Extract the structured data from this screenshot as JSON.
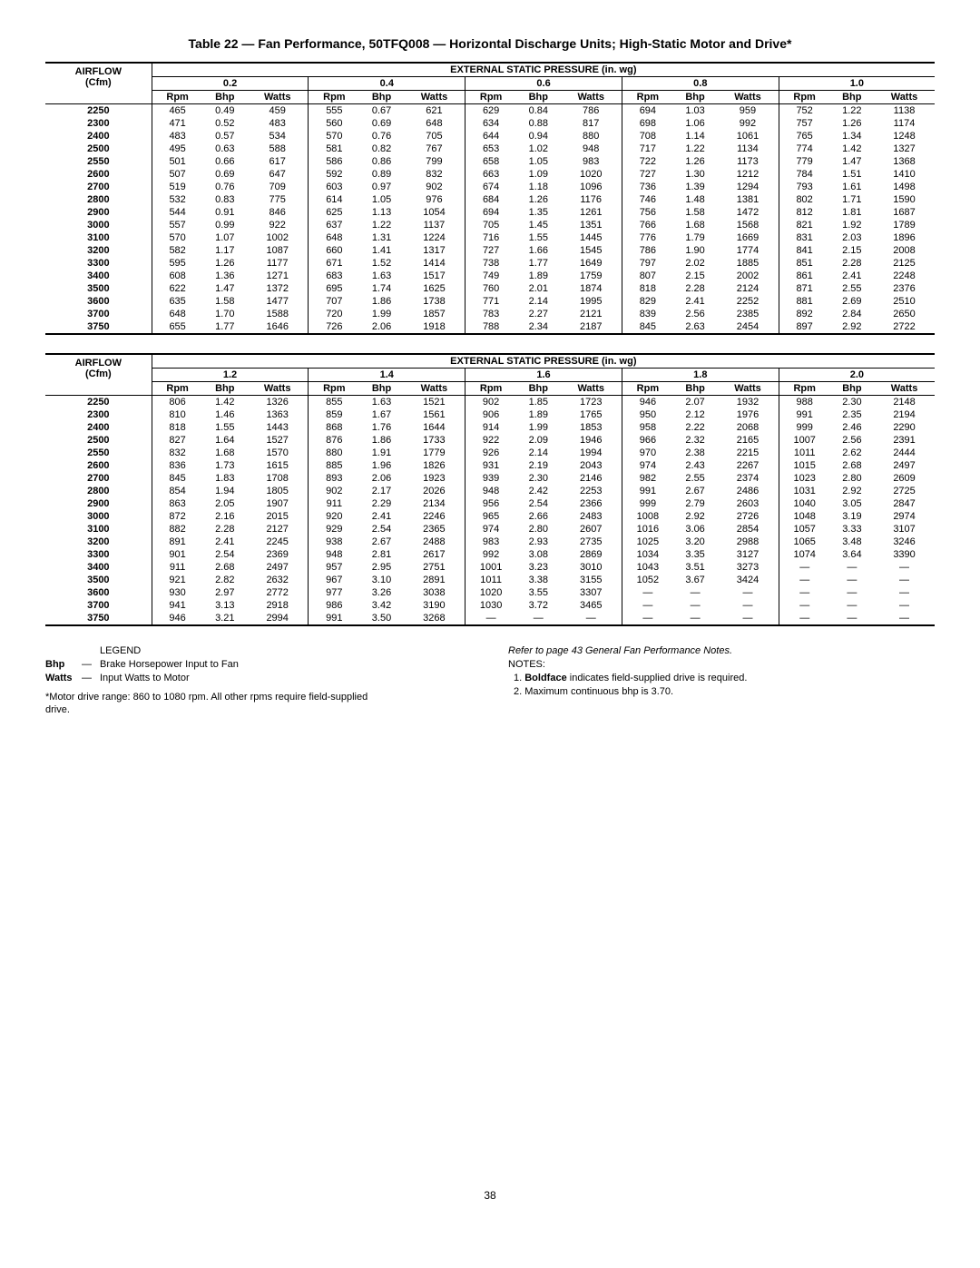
{
  "title": "Table 22 — Fan Performance, 50TFQ008 — Horizontal Discharge Units; High-Static Motor and Drive*",
  "headers": {
    "airflow": "AIRFLOW (Cfm)",
    "pressure": "EXTERNAL STATIC PRESSURE (in. wg)",
    "sub": [
      "Rpm",
      "Bhp",
      "Watts"
    ]
  },
  "table1": {
    "groups": [
      "0.2",
      "0.4",
      "0.6",
      "0.8",
      "1.0"
    ],
    "rows": [
      {
        "cfm": "2250",
        "v": [
          "465",
          "0.49",
          "459",
          "555",
          "0.67",
          "621",
          "629",
          "0.84",
          "786",
          "694",
          "1.03",
          "959",
          "752",
          "1.22",
          "1138"
        ]
      },
      {
        "cfm": "2300",
        "v": [
          "471",
          "0.52",
          "483",
          "560",
          "0.69",
          "648",
          "634",
          "0.88",
          "817",
          "698",
          "1.06",
          "992",
          "757",
          "1.26",
          "1174"
        ]
      },
      {
        "cfm": "2400",
        "v": [
          "483",
          "0.57",
          "534",
          "570",
          "0.76",
          "705",
          "644",
          "0.94",
          "880",
          "708",
          "1.14",
          "1061",
          "765",
          "1.34",
          "1248"
        ]
      },
      {
        "cfm": "2500",
        "v": [
          "495",
          "0.63",
          "588",
          "581",
          "0.82",
          "767",
          "653",
          "1.02",
          "948",
          "717",
          "1.22",
          "1134",
          "774",
          "1.42",
          "1327"
        ]
      },
      {
        "cfm": "2550",
        "v": [
          "501",
          "0.66",
          "617",
          "586",
          "0.86",
          "799",
          "658",
          "1.05",
          "983",
          "722",
          "1.26",
          "1173",
          "779",
          "1.47",
          "1368"
        ]
      },
      {
        "cfm": "2600",
        "v": [
          "507",
          "0.69",
          "647",
          "592",
          "0.89",
          "832",
          "663",
          "1.09",
          "1020",
          "727",
          "1.30",
          "1212",
          "784",
          "1.51",
          "1410"
        ]
      },
      {
        "cfm": "2700",
        "v": [
          "519",
          "0.76",
          "709",
          "603",
          "0.97",
          "902",
          "674",
          "1.18",
          "1096",
          "736",
          "1.39",
          "1294",
          "793",
          "1.61",
          "1498"
        ]
      },
      {
        "cfm": "2800",
        "v": [
          "532",
          "0.83",
          "775",
          "614",
          "1.05",
          "976",
          "684",
          "1.26",
          "1176",
          "746",
          "1.48",
          "1381",
          "802",
          "1.71",
          "1590"
        ]
      },
      {
        "cfm": "2900",
        "v": [
          "544",
          "0.91",
          "846",
          "625",
          "1.13",
          "1054",
          "694",
          "1.35",
          "1261",
          "756",
          "1.58",
          "1472",
          "812",
          "1.81",
          "1687"
        ]
      },
      {
        "cfm": "3000",
        "v": [
          "557",
          "0.99",
          "922",
          "637",
          "1.22",
          "1137",
          "705",
          "1.45",
          "1351",
          "766",
          "1.68",
          "1568",
          "821",
          "1.92",
          "1789"
        ]
      },
      {
        "cfm": "3100",
        "v": [
          "570",
          "1.07",
          "1002",
          "648",
          "1.31",
          "1224",
          "716",
          "1.55",
          "1445",
          "776",
          "1.79",
          "1669",
          "831",
          "2.03",
          "1896"
        ]
      },
      {
        "cfm": "3200",
        "v": [
          "582",
          "1.17",
          "1087",
          "660",
          "1.41",
          "1317",
          "727",
          "1.66",
          "1545",
          "786",
          "1.90",
          "1774",
          "841",
          "2.15",
          "2008"
        ]
      },
      {
        "cfm": "3300",
        "v": [
          "595",
          "1.26",
          "1177",
          "671",
          "1.52",
          "1414",
          "738",
          "1.77",
          "1649",
          "797",
          "2.02",
          "1885",
          "851",
          "2.28",
          "2125"
        ]
      },
      {
        "cfm": "3400",
        "v": [
          "608",
          "1.36",
          "1271",
          "683",
          "1.63",
          "1517",
          "749",
          "1.89",
          "1759",
          "807",
          "2.15",
          "2002",
          "861",
          "2.41",
          "2248"
        ]
      },
      {
        "cfm": "3500",
        "v": [
          "622",
          "1.47",
          "1372",
          "695",
          "1.74",
          "1625",
          "760",
          "2.01",
          "1874",
          "818",
          "2.28",
          "2124",
          "871",
          "2.55",
          "2376"
        ]
      },
      {
        "cfm": "3600",
        "v": [
          "635",
          "1.58",
          "1477",
          "707",
          "1.86",
          "1738",
          "771",
          "2.14",
          "1995",
          "829",
          "2.41",
          "2252",
          "881",
          "2.69",
          "2510"
        ]
      },
      {
        "cfm": "3700",
        "v": [
          "648",
          "1.70",
          "1588",
          "720",
          "1.99",
          "1857",
          "783",
          "2.27",
          "2121",
          "839",
          "2.56",
          "2385",
          "892",
          "2.84",
          "2650"
        ]
      },
      {
        "cfm": "3750",
        "v": [
          "655",
          "1.77",
          "1646",
          "726",
          "2.06",
          "1918",
          "788",
          "2.34",
          "2187",
          "845",
          "2.63",
          "2454",
          "897",
          "2.92",
          "2722"
        ]
      }
    ]
  },
  "table2": {
    "groups": [
      "1.2",
      "1.4",
      "1.6",
      "1.8",
      "2.0"
    ],
    "rows": [
      {
        "cfm": "2250",
        "v": [
          "806",
          "1.42",
          "1326",
          "855",
          "1.63",
          "1521",
          "902",
          "1.85",
          "1723",
          "946",
          "2.07",
          "1932",
          "988",
          "2.30",
          "2148"
        ]
      },
      {
        "cfm": "2300",
        "v": [
          "810",
          "1.46",
          "1363",
          "859",
          "1.67",
          "1561",
          "906",
          "1.89",
          "1765",
          "950",
          "2.12",
          "1976",
          "991",
          "2.35",
          "2194"
        ]
      },
      {
        "cfm": "2400",
        "v": [
          "818",
          "1.55",
          "1443",
          "868",
          "1.76",
          "1644",
          "914",
          "1.99",
          "1853",
          "958",
          "2.22",
          "2068",
          "999",
          "2.46",
          "2290"
        ]
      },
      {
        "cfm": "2500",
        "v": [
          "827",
          "1.64",
          "1527",
          "876",
          "1.86",
          "1733",
          "922",
          "2.09",
          "1946",
          "966",
          "2.32",
          "2165",
          "1007",
          "2.56",
          "2391"
        ]
      },
      {
        "cfm": "2550",
        "v": [
          "832",
          "1.68",
          "1570",
          "880",
          "1.91",
          "1779",
          "926",
          "2.14",
          "1994",
          "970",
          "2.38",
          "2215",
          "1011",
          "2.62",
          "2444"
        ]
      },
      {
        "cfm": "2600",
        "v": [
          "836",
          "1.73",
          "1615",
          "885",
          "1.96",
          "1826",
          "931",
          "2.19",
          "2043",
          "974",
          "2.43",
          "2267",
          "1015",
          "2.68",
          "2497"
        ]
      },
      {
        "cfm": "2700",
        "v": [
          "845",
          "1.83",
          "1708",
          "893",
          "2.06",
          "1923",
          "939",
          "2.30",
          "2146",
          "982",
          "2.55",
          "2374",
          "1023",
          "2.80",
          "2609"
        ]
      },
      {
        "cfm": "2800",
        "v": [
          "854",
          "1.94",
          "1805",
          "902",
          "2.17",
          "2026",
          "948",
          "2.42",
          "2253",
          "991",
          "2.67",
          "2486",
          "1031",
          "2.92",
          "2725"
        ]
      },
      {
        "cfm": "2900",
        "v": [
          "863",
          "2.05",
          "1907",
          "911",
          "2.29",
          "2134",
          "956",
          "2.54",
          "2366",
          "999",
          "2.79",
          "2603",
          "1040",
          "3.05",
          "2847"
        ]
      },
      {
        "cfm": "3000",
        "v": [
          "872",
          "2.16",
          "2015",
          "920",
          "2.41",
          "2246",
          "965",
          "2.66",
          "2483",
          "1008",
          "2.92",
          "2726",
          "1048",
          "3.19",
          "2974"
        ]
      },
      {
        "cfm": "3100",
        "v": [
          "882",
          "2.28",
          "2127",
          "929",
          "2.54",
          "2365",
          "974",
          "2.80",
          "2607",
          "1016",
          "3.06",
          "2854",
          "1057",
          "3.33",
          "3107"
        ]
      },
      {
        "cfm": "3200",
        "v": [
          "891",
          "2.41",
          "2245",
          "938",
          "2.67",
          "2488",
          "983",
          "2.93",
          "2735",
          "1025",
          "3.20",
          "2988",
          "1065",
          "3.48",
          "3246"
        ]
      },
      {
        "cfm": "3300",
        "v": [
          "901",
          "2.54",
          "2369",
          "948",
          "2.81",
          "2617",
          "992",
          "3.08",
          "2869",
          "1034",
          "3.35",
          "3127",
          "1074",
          "3.64",
          "3390"
        ]
      },
      {
        "cfm": "3400",
        "v": [
          "911",
          "2.68",
          "2497",
          "957",
          "2.95",
          "2751",
          "1001",
          "3.23",
          "3010",
          "1043",
          "3.51",
          "3273",
          "—",
          "—",
          "—"
        ]
      },
      {
        "cfm": "3500",
        "v": [
          "921",
          "2.82",
          "2632",
          "967",
          "3.10",
          "2891",
          "1011",
          "3.38",
          "3155",
          "1052",
          "3.67",
          "3424",
          "—",
          "—",
          "—"
        ]
      },
      {
        "cfm": "3600",
        "v": [
          "930",
          "2.97",
          "2772",
          "977",
          "3.26",
          "3038",
          "1020",
          "3.55",
          "3307",
          "—",
          "—",
          "—",
          "—",
          "—",
          "—"
        ]
      },
      {
        "cfm": "3700",
        "v": [
          "941",
          "3.13",
          "2918",
          "986",
          "3.42",
          "3190",
          "1030",
          "3.72",
          "3465",
          "—",
          "—",
          "—",
          "—",
          "—",
          "—"
        ]
      },
      {
        "cfm": "3750",
        "v": [
          "946",
          "3.21",
          "2994",
          "991",
          "3.50",
          "3268",
          "—",
          "—",
          "—",
          "—",
          "—",
          "—",
          "—",
          "—",
          "—"
        ]
      }
    ]
  },
  "legend": {
    "title": "LEGEND",
    "rows": [
      {
        "term": "Bhp",
        "def": "Brake Horsepower Input to Fan"
      },
      {
        "term": "Watts",
        "def": "Input Watts to Motor"
      }
    ],
    "foot": "*Motor drive range: 860 to 1080 rpm. All other rpms require field-supplied drive."
  },
  "notes": {
    "ref": "Refer to page 43 General Fan Performance Notes.",
    "title": "NOTES:",
    "items": [
      {
        "n": "1.",
        "pre": "Boldface",
        "post": " indicates field-supplied drive is required."
      },
      {
        "n": "2.",
        "pre": "",
        "post": "Maximum continuous bhp is 3.70."
      }
    ]
  },
  "page": "38"
}
